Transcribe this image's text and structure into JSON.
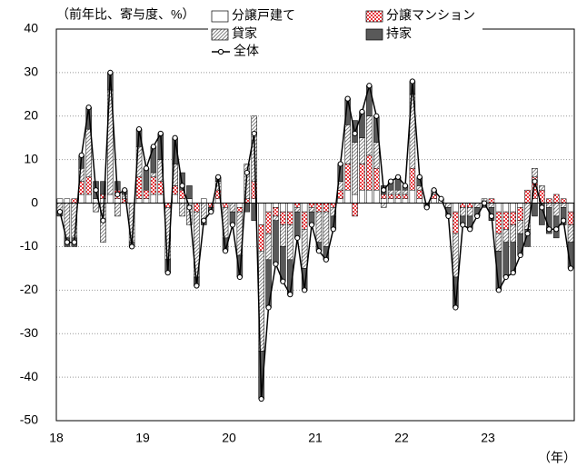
{
  "chart_data": {
    "type": "stacked_bar",
    "title": "（前年比、寄与度、%）",
    "x_unit_label": "（年）",
    "categories": [
      "18",
      null,
      null,
      null,
      null,
      null,
      null,
      null,
      null,
      null,
      null,
      null,
      "19",
      null,
      null,
      null,
      null,
      null,
      null,
      null,
      null,
      null,
      null,
      null,
      "20",
      null,
      null,
      null,
      null,
      null,
      null,
      null,
      null,
      null,
      null,
      null,
      "21",
      null,
      null,
      null,
      null,
      null,
      null,
      null,
      null,
      null,
      null,
      null,
      "22",
      null,
      null,
      null,
      null,
      null,
      null,
      null,
      null,
      null,
      null,
      null,
      "23",
      null,
      null,
      null,
      null,
      null,
      null,
      null,
      null,
      null,
      null,
      null
    ],
    "series": [
      {
        "name": "分譲戸建て",
        "color": "#ffffff",
        "pattern": "solid",
        "values": [
          1,
          1,
          0,
          2,
          2,
          1,
          1,
          2,
          1,
          0,
          0,
          1,
          1,
          2,
          2,
          0,
          2,
          1,
          1,
          0,
          1,
          0,
          1,
          0,
          0,
          -1,
          0,
          1,
          -5,
          -2,
          -1,
          -2,
          -2,
          0,
          -2,
          0,
          0,
          0,
          0,
          1,
          3,
          2,
          3,
          3,
          3,
          1,
          1,
          1,
          1,
          3,
          1,
          0,
          1,
          1,
          0,
          -2,
          0,
          0,
          0,
          0,
          0,
          -2,
          -2,
          -2,
          -1,
          0,
          1,
          0,
          0,
          0,
          0,
          -2
        ]
      },
      {
        "name": "分譲マンション",
        "color": "#e8383d",
        "pattern": "dots",
        "values": [
          0,
          0,
          1,
          3,
          4,
          0,
          1,
          0,
          2,
          1,
          0,
          5,
          2,
          4,
          3,
          -1,
          2,
          2,
          0,
          -2,
          0,
          -1,
          2,
          -1,
          0,
          -1,
          1,
          4,
          -6,
          -5,
          -2,
          -3,
          -3,
          -1,
          -4,
          -1,
          -2,
          -2,
          -1,
          2,
          6,
          -3,
          6,
          8,
          5,
          1,
          1,
          1,
          1,
          5,
          2,
          0,
          1,
          0,
          0,
          -5,
          -1,
          -1,
          0,
          0,
          1,
          -5,
          -4,
          -3,
          -3,
          3,
          5,
          3,
          1,
          2,
          1,
          -3
        ]
      },
      {
        "name": "貸家",
        "color": "#808080",
        "pattern": "hatch",
        "values": [
          -2,
          -8,
          -8,
          3,
          11,
          -2,
          -9,
          24,
          -3,
          1,
          -9,
          7,
          0,
          1,
          5,
          -12,
          5,
          -3,
          -5,
          -15,
          -4,
          0,
          2,
          -7,
          -2,
          -10,
          8,
          15,
          -23,
          -6,
          -1,
          -5,
          -8,
          -1,
          -9,
          -1,
          -7,
          -8,
          -2,
          2,
          9,
          12,
          6,
          9,
          6,
          -1,
          1,
          1,
          1,
          17,
          1,
          0,
          1,
          0,
          -1,
          -10,
          -2,
          -2,
          -1,
          1,
          -1,
          -4,
          -3,
          -4,
          -3,
          -6,
          2,
          1,
          -1,
          -3,
          -1,
          -4
        ]
      },
      {
        "name": "持家",
        "color": "#595959",
        "pattern": "solid",
        "values": [
          -1,
          -2,
          -2,
          3,
          5,
          4,
          3,
          4,
          2,
          1,
          -1,
          4,
          5,
          6,
          6,
          -3,
          6,
          4,
          3,
          -2,
          -1,
          -1,
          1,
          -3,
          -3,
          -5,
          -2,
          -4,
          -11,
          -11,
          -10,
          -8,
          -8,
          -6,
          -5,
          -3,
          -2,
          -3,
          -3,
          4,
          6,
          5,
          6,
          7,
          6,
          2,
          2,
          3,
          1,
          3,
          2,
          -1,
          0,
          0,
          -2,
          -7,
          -2,
          -3,
          -2,
          -1,
          -3,
          -9,
          -8,
          -7,
          -5,
          -4,
          -3,
          -5,
          -6,
          -5,
          -4,
          -6
        ]
      }
    ],
    "total": {
      "name": "全体",
      "color": "#000000",
      "values": [
        -2,
        -9,
        -9,
        11,
        22,
        3,
        -4,
        30,
        2,
        3,
        -10,
        17,
        8,
        13,
        16,
        -16,
        15,
        4,
        -1,
        -19,
        -4,
        -2,
        6,
        -11,
        -5,
        -17,
        7,
        16,
        -45,
        -24,
        -14,
        -18,
        -21,
        -8,
        -20,
        -5,
        -11,
        -13,
        -6,
        9,
        24,
        16,
        21,
        27,
        20,
        3,
        5,
        6,
        4,
        28,
        6,
        -1,
        3,
        1,
        -3,
        -24,
        -5,
        -6,
        -3,
        0,
        -3,
        -20,
        -17,
        -16,
        -12,
        -7,
        5,
        -1,
        -6,
        -6,
        -4,
        -15
      ]
    },
    "ylim": [
      -50,
      40
    ],
    "yticks": [
      -50,
      -40,
      -30,
      -20,
      -10,
      0,
      10,
      20,
      30,
      40
    ],
    "grid": true
  }
}
